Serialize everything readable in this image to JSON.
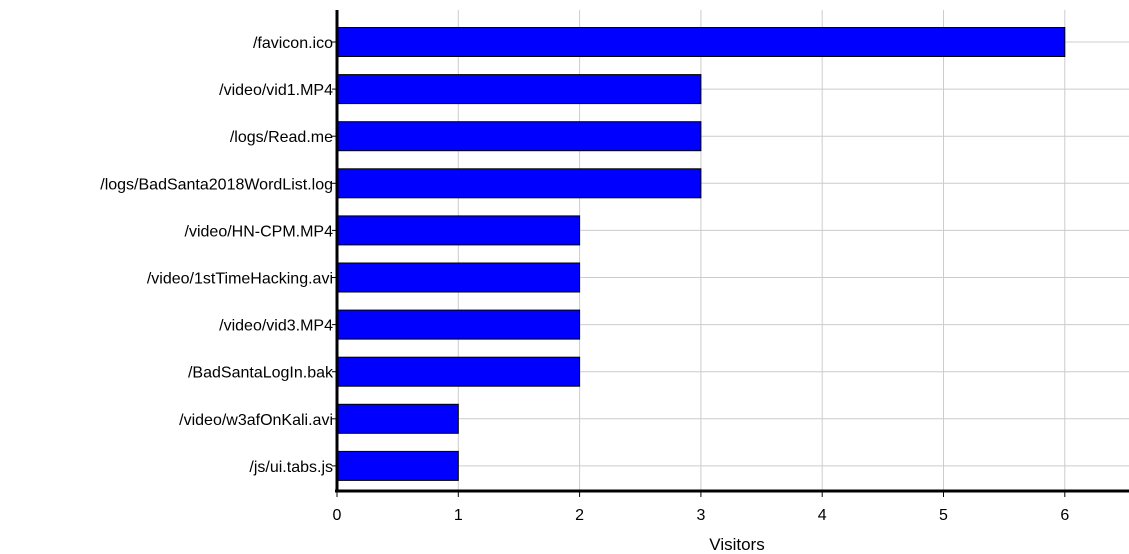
{
  "chart_data": {
    "type": "bar",
    "orientation": "horizontal",
    "title": "",
    "xlabel": "Visitors",
    "ylabel": "",
    "categories": [
      "/favicon.ico",
      "/video/vid1.MP4",
      "/logs/Read.me",
      "/logs/BadSanta2018WordList.log",
      "/video/HN-CPM.MP4",
      "/video/1stTimeHacking.avi",
      "/video/vid3.MP4",
      "/BadSantaLogIn.bak",
      "/video/w3afOnKali.avi",
      "/js/ui.tabs.js"
    ],
    "values": [
      6,
      3,
      3,
      3,
      2,
      2,
      2,
      2,
      1,
      1
    ],
    "xlim": [
      0,
      6.5
    ],
    "xticks": [
      "0",
      "1",
      "2",
      "3",
      "4",
      "5",
      "6"
    ],
    "grid": true,
    "legend": "none",
    "colors": {
      "bar_fill": "#0000ff",
      "bar_stroke": "#000000",
      "grid": "#cccccc",
      "axis": "#000000"
    }
  }
}
